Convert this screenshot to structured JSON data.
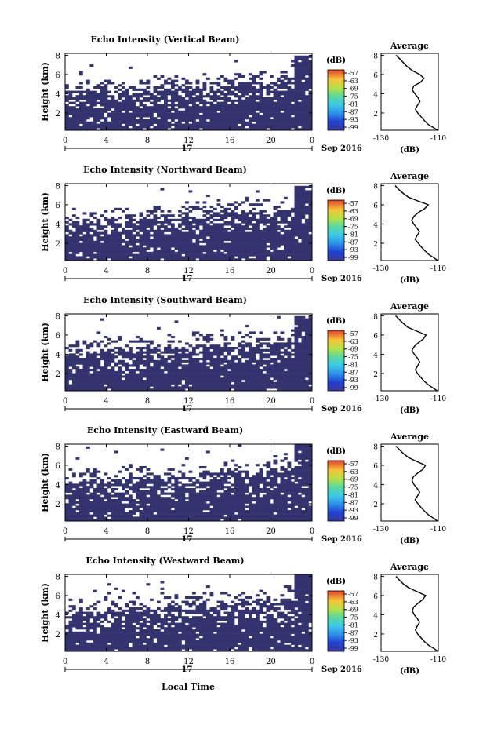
{
  "figure": {
    "xlabel": "Local Time",
    "date_label": "Sep 2016",
    "day_label": "17",
    "ylabel": "Height (km)",
    "cbar_label": "(dB)",
    "cbar_ticks": [
      "-57",
      "-63",
      "-69",
      "-75",
      "-81",
      "-87",
      "-93",
      "-99"
    ],
    "avg_title": "Average",
    "avg_xlabel": "(dB)"
  },
  "chart_data": [
    {
      "type": "heatmap",
      "title": "Echo Intensity (Vertical Beam)",
      "xlabel": "",
      "ylabel": "Height (km)",
      "x_ticks": [
        "0",
        "4",
        "8",
        "12",
        "16",
        "20",
        "0"
      ],
      "y_ticks": [
        "2",
        "4",
        "6",
        "8"
      ],
      "xlim": [
        0,
        24
      ],
      "ylim": [
        0.2,
        8.2
      ],
      "colorbar": {
        "label": "(dB)",
        "range": [
          -99,
          -57
        ]
      },
      "solid_top_km": 4.2
    },
    {
      "type": "line",
      "title": "Average",
      "xlabel": "(dB)",
      "x_ticks": [
        "-130",
        "-110"
      ],
      "y_ticks": [
        "2",
        "4",
        "6",
        "8"
      ],
      "xlim": [
        -130,
        -110
      ],
      "ylim": [
        0.2,
        8.2
      ],
      "x": [
        -110.3,
        -111.8,
        -113.5,
        -114.8,
        -116,
        -117.2,
        -118,
        -117.3,
        -116.4,
        -117.1,
        -118.2,
        -119.1,
        -118.6,
        -116.2,
        -115,
        -116.5,
        -119,
        -120.8,
        -122.1,
        -123.4,
        -124.8
      ],
      "y": [
        0.2,
        0.5,
        0.8,
        1.2,
        1.6,
        2.0,
        2.4,
        2.8,
        3.2,
        3.6,
        4.0,
        4.4,
        4.8,
        5.2,
        5.6,
        6.0,
        6.4,
        6.8,
        7.2,
        7.6,
        8.0
      ]
    },
    {
      "type": "heatmap",
      "title": "Echo Intensity (Northward Beam)",
      "xlabel": "",
      "ylabel": "Height (km)",
      "x_ticks": [
        "0",
        "4",
        "8",
        "12",
        "16",
        "20",
        "0"
      ],
      "y_ticks": [
        "2",
        "4",
        "6",
        "8"
      ],
      "xlim": [
        0,
        24
      ],
      "ylim": [
        0.2,
        8.2
      ],
      "colorbar": {
        "label": "(dB)",
        "range": [
          -99,
          -57
        ]
      },
      "solid_top_km": 4.4
    },
    {
      "type": "line",
      "title": "Average",
      "xlabel": "(dB)",
      "x_ticks": [
        "-130",
        "-110"
      ],
      "y_ticks": [
        "2",
        "4",
        "6",
        "8"
      ],
      "xlim": [
        -130,
        -110
      ],
      "ylim": [
        0.2,
        8.2
      ],
      "x": [
        -110.2,
        -111.6,
        -113.2,
        -114.6,
        -115.9,
        -117,
        -118.1,
        -117.4,
        -116.6,
        -117.5,
        -118.6,
        -119.3,
        -118.5,
        -117,
        -114.8,
        -113.5,
        -117.2,
        -120.5,
        -122.3,
        -123.9,
        -125.1
      ],
      "y": [
        0.2,
        0.5,
        0.8,
        1.2,
        1.6,
        2.0,
        2.4,
        2.8,
        3.2,
        3.6,
        4.0,
        4.4,
        4.8,
        5.2,
        5.6,
        6.0,
        6.4,
        6.8,
        7.2,
        7.6,
        8.0
      ]
    },
    {
      "type": "heatmap",
      "title": "Echo Intensity (Southward Beam)",
      "xlabel": "",
      "ylabel": "Height (km)",
      "x_ticks": [
        "0",
        "4",
        "8",
        "12",
        "16",
        "20",
        "0"
      ],
      "y_ticks": [
        "2",
        "4",
        "6",
        "8"
      ],
      "xlim": [
        0,
        24
      ],
      "ylim": [
        0.2,
        8.2
      ],
      "colorbar": {
        "label": "(dB)",
        "range": [
          -99,
          -57
        ]
      },
      "solid_top_km": 4.3
    },
    {
      "type": "line",
      "title": "Average",
      "xlabel": "(dB)",
      "x_ticks": [
        "-130",
        "-110"
      ],
      "y_ticks": [
        "2",
        "4",
        "6",
        "8"
      ],
      "xlim": [
        -130,
        -110
      ],
      "ylim": [
        0.2,
        8.2
      ],
      "x": [
        -110.4,
        -111.9,
        -113.4,
        -114.9,
        -116.1,
        -117.3,
        -118,
        -117.2,
        -116.5,
        -117.3,
        -118.4,
        -119.2,
        -118.4,
        -117,
        -115.2,
        -114.3,
        -117.5,
        -120.6,
        -122.2,
        -123.6,
        -124.9
      ],
      "y": [
        0.2,
        0.5,
        0.8,
        1.2,
        1.6,
        2.0,
        2.4,
        2.8,
        3.2,
        3.6,
        4.0,
        4.4,
        4.8,
        5.2,
        5.6,
        6.0,
        6.4,
        6.8,
        7.2,
        7.6,
        8.0
      ]
    },
    {
      "type": "heatmap",
      "title": "Echo Intensity (Eastward Beam)",
      "xlabel": "",
      "ylabel": "Height (km)",
      "x_ticks": [
        "0",
        "4",
        "8",
        "12",
        "16",
        "20",
        "0"
      ],
      "y_ticks": [
        "2",
        "4",
        "6",
        "8"
      ],
      "xlim": [
        0,
        24
      ],
      "ylim": [
        0.2,
        8.2
      ],
      "colorbar": {
        "label": "(dB)",
        "range": [
          -99,
          -57
        ]
      },
      "solid_top_km": 4.4
    },
    {
      "type": "line",
      "title": "Average",
      "xlabel": "(dB)",
      "x_ticks": [
        "-130",
        "-110"
      ],
      "y_ticks": [
        "2",
        "4",
        "6",
        "8"
      ],
      "xlim": [
        -130,
        -110
      ],
      "ylim": [
        0.2,
        8.2
      ],
      "x": [
        -110.3,
        -111.7,
        -113.3,
        -114.7,
        -116,
        -117.1,
        -118.1,
        -117.3,
        -116.5,
        -117.4,
        -118.5,
        -119.2,
        -118.7,
        -117.2,
        -115.3,
        -114.5,
        -117.6,
        -120.4,
        -122.1,
        -123.5,
        -124.8
      ],
      "y": [
        0.2,
        0.5,
        0.8,
        1.2,
        1.6,
        2.0,
        2.4,
        2.8,
        3.2,
        3.6,
        4.0,
        4.4,
        4.8,
        5.2,
        5.6,
        6.0,
        6.4,
        6.8,
        7.2,
        7.6,
        8.0
      ]
    },
    {
      "type": "heatmap",
      "title": "Echo Intensity (Westward Beam)",
      "xlabel": "Local Time",
      "ylabel": "Height (km)",
      "x_ticks": [
        "0",
        "4",
        "8",
        "12",
        "16",
        "20",
        "0"
      ],
      "y_ticks": [
        "2",
        "4",
        "6",
        "8"
      ],
      "xlim": [
        0,
        24
      ],
      "ylim": [
        0.2,
        8.2
      ],
      "colorbar": {
        "label": "(dB)",
        "range": [
          -99,
          -57
        ]
      },
      "solid_top_km": 4.3
    },
    {
      "type": "line",
      "title": "Average",
      "xlabel": "(dB)",
      "x_ticks": [
        "-130",
        "-110"
      ],
      "y_ticks": [
        "2",
        "4",
        "6",
        "8"
      ],
      "xlim": [
        -130,
        -110
      ],
      "ylim": [
        0.2,
        8.2
      ],
      "x": [
        -110.2,
        -111.6,
        -113.3,
        -114.8,
        -116,
        -117.2,
        -118,
        -117.4,
        -116.6,
        -117.3,
        -118.4,
        -119.1,
        -118.6,
        -117.1,
        -115.4,
        -114.4,
        -117.4,
        -120.3,
        -122.2,
        -123.6,
        -124.8
      ],
      "y": [
        0.2,
        0.5,
        0.8,
        1.2,
        1.6,
        2.0,
        2.4,
        2.8,
        3.2,
        3.6,
        4.0,
        4.4,
        4.8,
        5.2,
        5.6,
        6.0,
        6.4,
        6.8,
        7.2,
        7.6,
        8.0
      ]
    }
  ]
}
